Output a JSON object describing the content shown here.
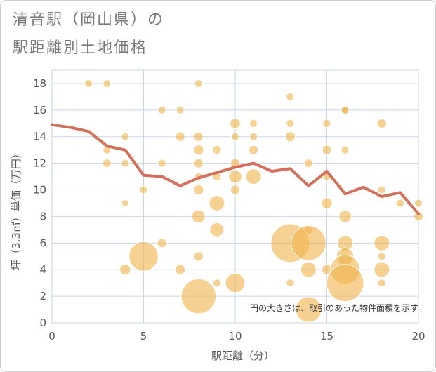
{
  "title_line1": "清音駅（岡山県）の",
  "title_line2": "駅距離別土地価格",
  "chart_data": {
    "type": "scatter",
    "xlabel": "駅距離（分）",
    "ylabel": "坪（3.3㎡）単価（万円）",
    "xlim": [
      0,
      20
    ],
    "ylim": [
      0,
      19
    ],
    "xticks": [
      0,
      5,
      10,
      15,
      20
    ],
    "yticks": [
      0,
      2,
      4,
      6,
      8,
      10,
      12,
      14,
      16,
      18
    ],
    "grid": true,
    "note": "円の大きさは、取引のあった物件面積を示す",
    "colors": {
      "bubble": "#f0b24a",
      "line": "#d4705a",
      "grid": "#c8d6e5"
    },
    "scatter": [
      {
        "x": 2,
        "y": 18,
        "s": 1
      },
      {
        "x": 3,
        "y": 18,
        "s": 1
      },
      {
        "x": 8,
        "y": 18,
        "s": 1
      },
      {
        "x": 13,
        "y": 17,
        "s": 1
      },
      {
        "x": 6,
        "y": 16,
        "s": 1
      },
      {
        "x": 7,
        "y": 16,
        "s": 1
      },
      {
        "x": 16,
        "y": 16,
        "s": 1
      },
      {
        "x": 16,
        "y": 16,
        "s": 1
      },
      {
        "x": 10,
        "y": 15,
        "s": 1.3
      },
      {
        "x": 11,
        "y": 15,
        "s": 1
      },
      {
        "x": 13,
        "y": 15,
        "s": 1
      },
      {
        "x": 15,
        "y": 15,
        "s": 1
      },
      {
        "x": 18,
        "y": 15,
        "s": 1.2
      },
      {
        "x": 4,
        "y": 14,
        "s": 1
      },
      {
        "x": 7,
        "y": 14,
        "s": 1.2
      },
      {
        "x": 8,
        "y": 14,
        "s": 1.2
      },
      {
        "x": 10,
        "y": 14,
        "s": 1
      },
      {
        "x": 11,
        "y": 14,
        "s": 1
      },
      {
        "x": 13,
        "y": 14,
        "s": 1.3
      },
      {
        "x": 3,
        "y": 13,
        "s": 1
      },
      {
        "x": 8,
        "y": 13,
        "s": 1.3
      },
      {
        "x": 9,
        "y": 13,
        "s": 1.1
      },
      {
        "x": 11,
        "y": 13,
        "s": 1.2
      },
      {
        "x": 15,
        "y": 13,
        "s": 1.2
      },
      {
        "x": 16,
        "y": 13,
        "s": 1
      },
      {
        "x": 3,
        "y": 12,
        "s": 1.1
      },
      {
        "x": 4,
        "y": 12,
        "s": 1
      },
      {
        "x": 6,
        "y": 12,
        "s": 1
      },
      {
        "x": 8,
        "y": 12,
        "s": 1.2
      },
      {
        "x": 10,
        "y": 12,
        "s": 1.2
      },
      {
        "x": 14,
        "y": 12,
        "s": 1.1
      },
      {
        "x": 8,
        "y": 11,
        "s": 1
      },
      {
        "x": 9,
        "y": 11,
        "s": 1.1
      },
      {
        "x": 10,
        "y": 11,
        "s": 1.7
      },
      {
        "x": 11,
        "y": 11,
        "s": 2.0
      },
      {
        "x": 15,
        "y": 11,
        "s": 1
      },
      {
        "x": 5,
        "y": 10,
        "s": 1
      },
      {
        "x": 8,
        "y": 10,
        "s": 1.3
      },
      {
        "x": 10,
        "y": 10,
        "s": 1.2
      },
      {
        "x": 18,
        "y": 10,
        "s": 1
      },
      {
        "x": 4,
        "y": 9,
        "s": 0.9
      },
      {
        "x": 9,
        "y": 9,
        "s": 2.0
      },
      {
        "x": 15,
        "y": 9,
        "s": 1.4
      },
      {
        "x": 19,
        "y": 9,
        "s": 1
      },
      {
        "x": 20,
        "y": 9,
        "s": 1
      },
      {
        "x": 8,
        "y": 8,
        "s": 1.7
      },
      {
        "x": 16,
        "y": 8,
        "s": 1.6
      },
      {
        "x": 20,
        "y": 8,
        "s": 1.2
      },
      {
        "x": 9,
        "y": 7,
        "s": 1.8
      },
      {
        "x": 14,
        "y": 7,
        "s": 1.2
      },
      {
        "x": 6,
        "y": 6,
        "s": 1.2
      },
      {
        "x": 13,
        "y": 6,
        "s": 5.0
      },
      {
        "x": 14,
        "y": 6,
        "s": 4.5
      },
      {
        "x": 16,
        "y": 6,
        "s": 2.0
      },
      {
        "x": 18,
        "y": 6,
        "s": 2.0
      },
      {
        "x": 5,
        "y": 5,
        "s": 3.8
      },
      {
        "x": 8,
        "y": 5,
        "s": 1.2
      },
      {
        "x": 16,
        "y": 5,
        "s": 2.2
      },
      {
        "x": 18,
        "y": 5,
        "s": 1
      },
      {
        "x": 4,
        "y": 4,
        "s": 1.4
      },
      {
        "x": 7,
        "y": 4,
        "s": 1.3
      },
      {
        "x": 14,
        "y": 4,
        "s": 2.0
      },
      {
        "x": 15,
        "y": 4,
        "s": 1.3
      },
      {
        "x": 16,
        "y": 4,
        "s": 3.8
      },
      {
        "x": 18,
        "y": 4,
        "s": 2.0
      },
      {
        "x": 9,
        "y": 3,
        "s": 1
      },
      {
        "x": 10,
        "y": 3,
        "s": 2.5
      },
      {
        "x": 13,
        "y": 3,
        "s": 1
      },
      {
        "x": 16,
        "y": 3,
        "s": 4.8
      },
      {
        "x": 18,
        "y": 3,
        "s": 1
      },
      {
        "x": 8,
        "y": 2,
        "s": 4.5
      },
      {
        "x": 14,
        "y": 1,
        "s": 3.3
      }
    ],
    "line": {
      "x": [
        0,
        1,
        2,
        3,
        4,
        5,
        6,
        7,
        8,
        9,
        10,
        11,
        12,
        13,
        14,
        15,
        16,
        17,
        18,
        19,
        20
      ],
      "y": [
        14.9,
        14.7,
        14.4,
        13.3,
        13.0,
        11.1,
        11.0,
        10.3,
        10.9,
        11.3,
        11.7,
        12.0,
        11.4,
        11.6,
        10.3,
        11.4,
        9.7,
        10.2,
        9.5,
        9.8,
        8.2
      ]
    }
  }
}
